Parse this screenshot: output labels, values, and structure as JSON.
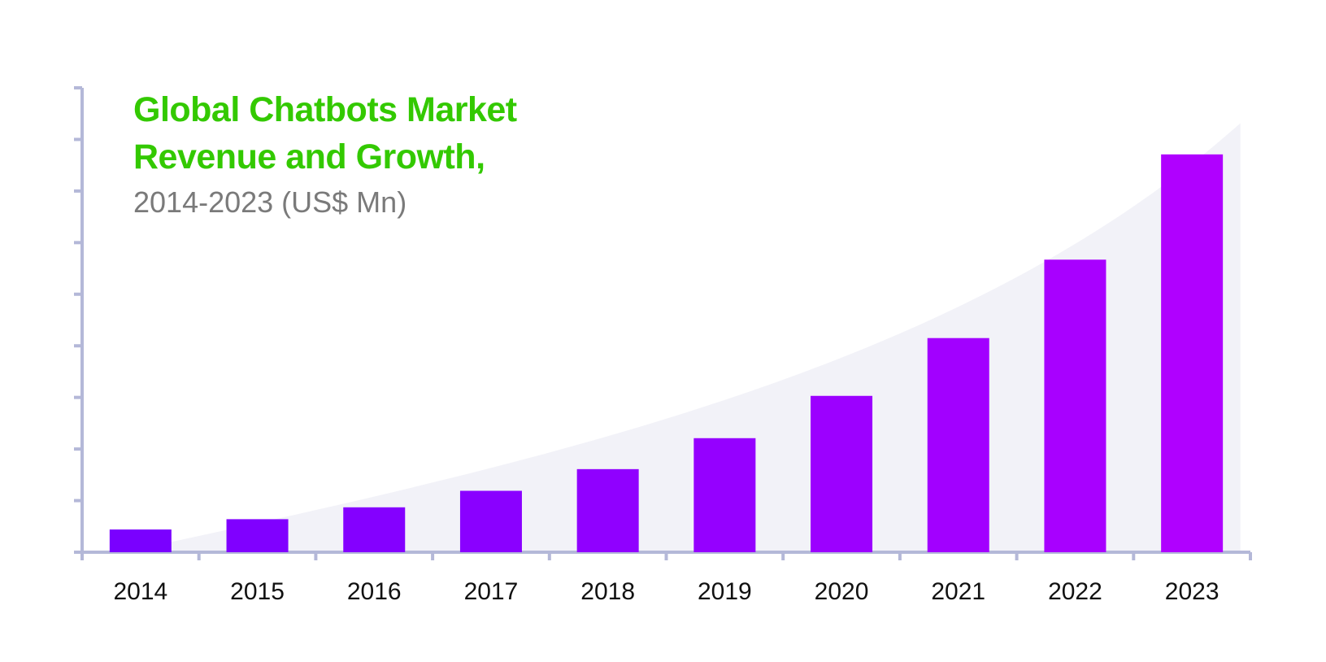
{
  "chart_data": {
    "type": "bar",
    "title": "Global Chatbots Market Revenue and Growth,",
    "subtitle": "2014-2023 (US$ Mn)",
    "categories": [
      "2014",
      "2015",
      "2016",
      "2017",
      "2018",
      "2019",
      "2020",
      "2021",
      "2022",
      "2023"
    ],
    "values": [
      0.44,
      0.64,
      0.87,
      1.19,
      1.61,
      2.21,
      3.03,
      4.15,
      5.67,
      7.71
    ],
    "colors": [
      "#7a00ff",
      "#8000ff",
      "#8400ff",
      "#8a00ff",
      "#9000ff",
      "#9500ff",
      "#9c00ff",
      "#a200ff",
      "#a800ff",
      "#b000ff"
    ],
    "ylim": [
      0,
      9
    ],
    "yticks": [
      0,
      1,
      2,
      3,
      4,
      5,
      6,
      7,
      8,
      9
    ]
  }
}
